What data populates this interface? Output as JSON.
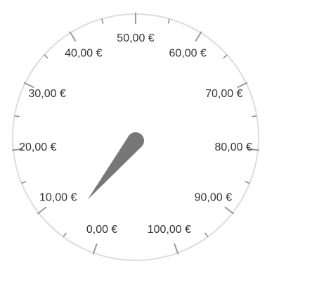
{
  "gauge": {
    "min": 0,
    "max": 100,
    "value": 6,
    "labels": [
      {
        "value": 0,
        "text": "0,00 €"
      },
      {
        "value": 10,
        "text": "10,00 €"
      },
      {
        "value": 20,
        "text": "20,00 €"
      },
      {
        "value": 30,
        "text": "30,00 €"
      },
      {
        "value": 40,
        "text": "40,00 €"
      },
      {
        "value": 50,
        "text": "50,00 €"
      },
      {
        "value": 60,
        "text": "60,00 €"
      },
      {
        "value": 70,
        "text": "70,00 €"
      },
      {
        "value": 80,
        "text": "80,00 €"
      },
      {
        "value": 90,
        "text": "90,00 €"
      },
      {
        "value": 100,
        "text": "100,00 €"
      }
    ],
    "colors": {
      "dial_border": "#dddddd",
      "major_tick": "#999999",
      "minor_tick": "#888888",
      "needle": "#777777",
      "label_text": "#333333"
    }
  }
}
